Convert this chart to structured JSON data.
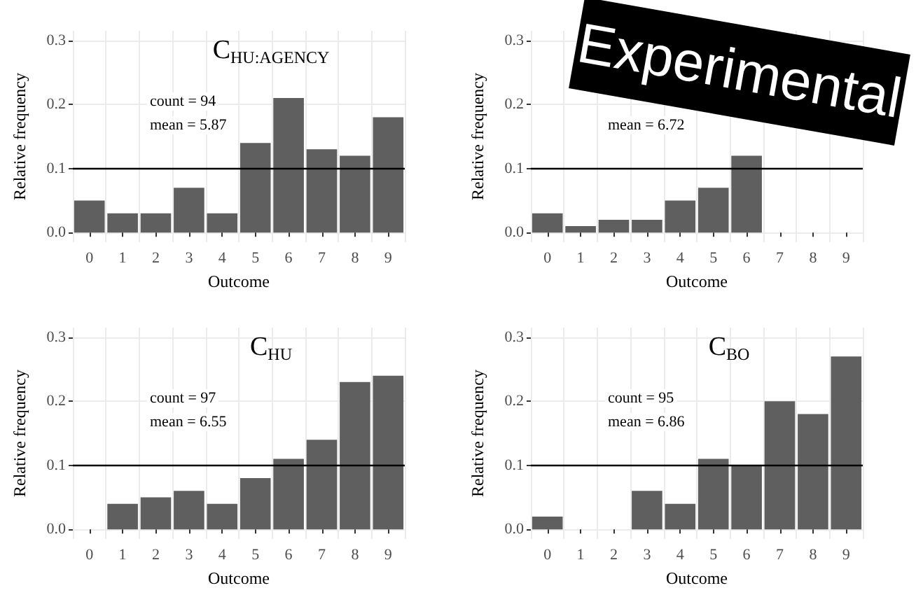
{
  "chart_data": [
    {
      "type": "bar",
      "title": "C$_{HU:AGENCY}$",
      "xlabel": "Outcome",
      "ylabel": "Relative frequency",
      "categories": [
        "0",
        "1",
        "2",
        "3",
        "4",
        "5",
        "6",
        "7",
        "8",
        "9"
      ],
      "color": "#5f5f5f",
      "values": [
        0.05,
        0.03,
        0.03,
        0.07,
        0.03,
        0.14,
        0.21,
        0.13,
        0.12,
        0.18
      ],
      "ylim": [
        -0.015,
        0.315
      ],
      "yticks": [
        {
          "value": 0,
          "label": "0.0"
        },
        {
          "value": 0.1,
          "label": "0.1"
        },
        {
          "value": 0.2,
          "label": "0.2"
        },
        {
          "value": 0.3,
          "label": "0.3"
        }
      ],
      "grid": true,
      "ref_lines": [
        {
          "axis": "y",
          "value": 0.1,
          "color": "#000000"
        }
      ],
      "annotations": [
        "count = 94",
        "mean = 5.87"
      ]
    },
    {
      "type": "bar",
      "xlabel": "Outcome",
      "ylabel": "Relative frequency",
      "categories": [
        "0",
        "1",
        "2",
        "3",
        "4",
        "5",
        "6",
        "7",
        "8",
        "9"
      ],
      "color": "#5f5f5f",
      "values": [
        0.03,
        0.01,
        0.02,
        0.02,
        0.05,
        0.07,
        0.12,
        null,
        null,
        null
      ],
      "ylim": [
        -0.015,
        0.315
      ],
      "yticks": [
        {
          "value": 0,
          "label": "0.0"
        },
        {
          "value": 0.1,
          "label": "0.1"
        },
        {
          "value": 0.2,
          "label": "0.2"
        },
        {
          "value": 0.3,
          "label": "0.3"
        }
      ],
      "grid": true,
      "ref_lines": [
        {
          "axis": "y",
          "value": 0.1,
          "color": "#000000"
        }
      ],
      "annotations": [
        "mean = 6.72"
      ]
    },
    {
      "type": "bar",
      "title": "C$_{HU}$",
      "xlabel": "Outcome",
      "ylabel": "Relative frequency",
      "categories": [
        "0",
        "1",
        "2",
        "3",
        "4",
        "5",
        "6",
        "7",
        "8",
        "9"
      ],
      "color": "#5f5f5f",
      "values": [
        0,
        0.04,
        0.05,
        0.06,
        0.04,
        0.08,
        0.11,
        0.14,
        0.23,
        0.24
      ],
      "ylim": [
        -0.015,
        0.315
      ],
      "yticks": [
        {
          "value": 0,
          "label": "0.0"
        },
        {
          "value": 0.1,
          "label": "0.1"
        },
        {
          "value": 0.2,
          "label": "0.2"
        },
        {
          "value": 0.3,
          "label": "0.3"
        }
      ],
      "grid": true,
      "ref_lines": [
        {
          "axis": "y",
          "value": 0.1,
          "color": "#000000"
        }
      ],
      "annotations": [
        "count = 97",
        "mean = 6.55"
      ]
    },
    {
      "type": "bar",
      "title": "C$_{BO}$",
      "xlabel": "Outcome",
      "ylabel": "Relative frequency",
      "categories": [
        "0",
        "1",
        "2",
        "3",
        "4",
        "5",
        "6",
        "7",
        "8",
        "9"
      ],
      "color": "#5f5f5f",
      "values": [
        0.02,
        0,
        0,
        0.06,
        0.04,
        0.11,
        0.1,
        0.2,
        0.18,
        0.27
      ],
      "ylim": [
        -0.015,
        0.315
      ],
      "yticks": [
        {
          "value": 0,
          "label": "0.0"
        },
        {
          "value": 0.1,
          "label": "0.1"
        },
        {
          "value": 0.2,
          "label": "0.2"
        },
        {
          "value": 0.3,
          "label": "0.3"
        }
      ],
      "grid": true,
      "ref_lines": [
        {
          "axis": "y",
          "value": 0.1,
          "color": "#000000"
        }
      ],
      "annotations": [
        "count = 95",
        "mean = 6.86"
      ]
    },
    {
      "type": "other",
      "annotations": [
        "Experimental"
      ]
    }
  ]
}
